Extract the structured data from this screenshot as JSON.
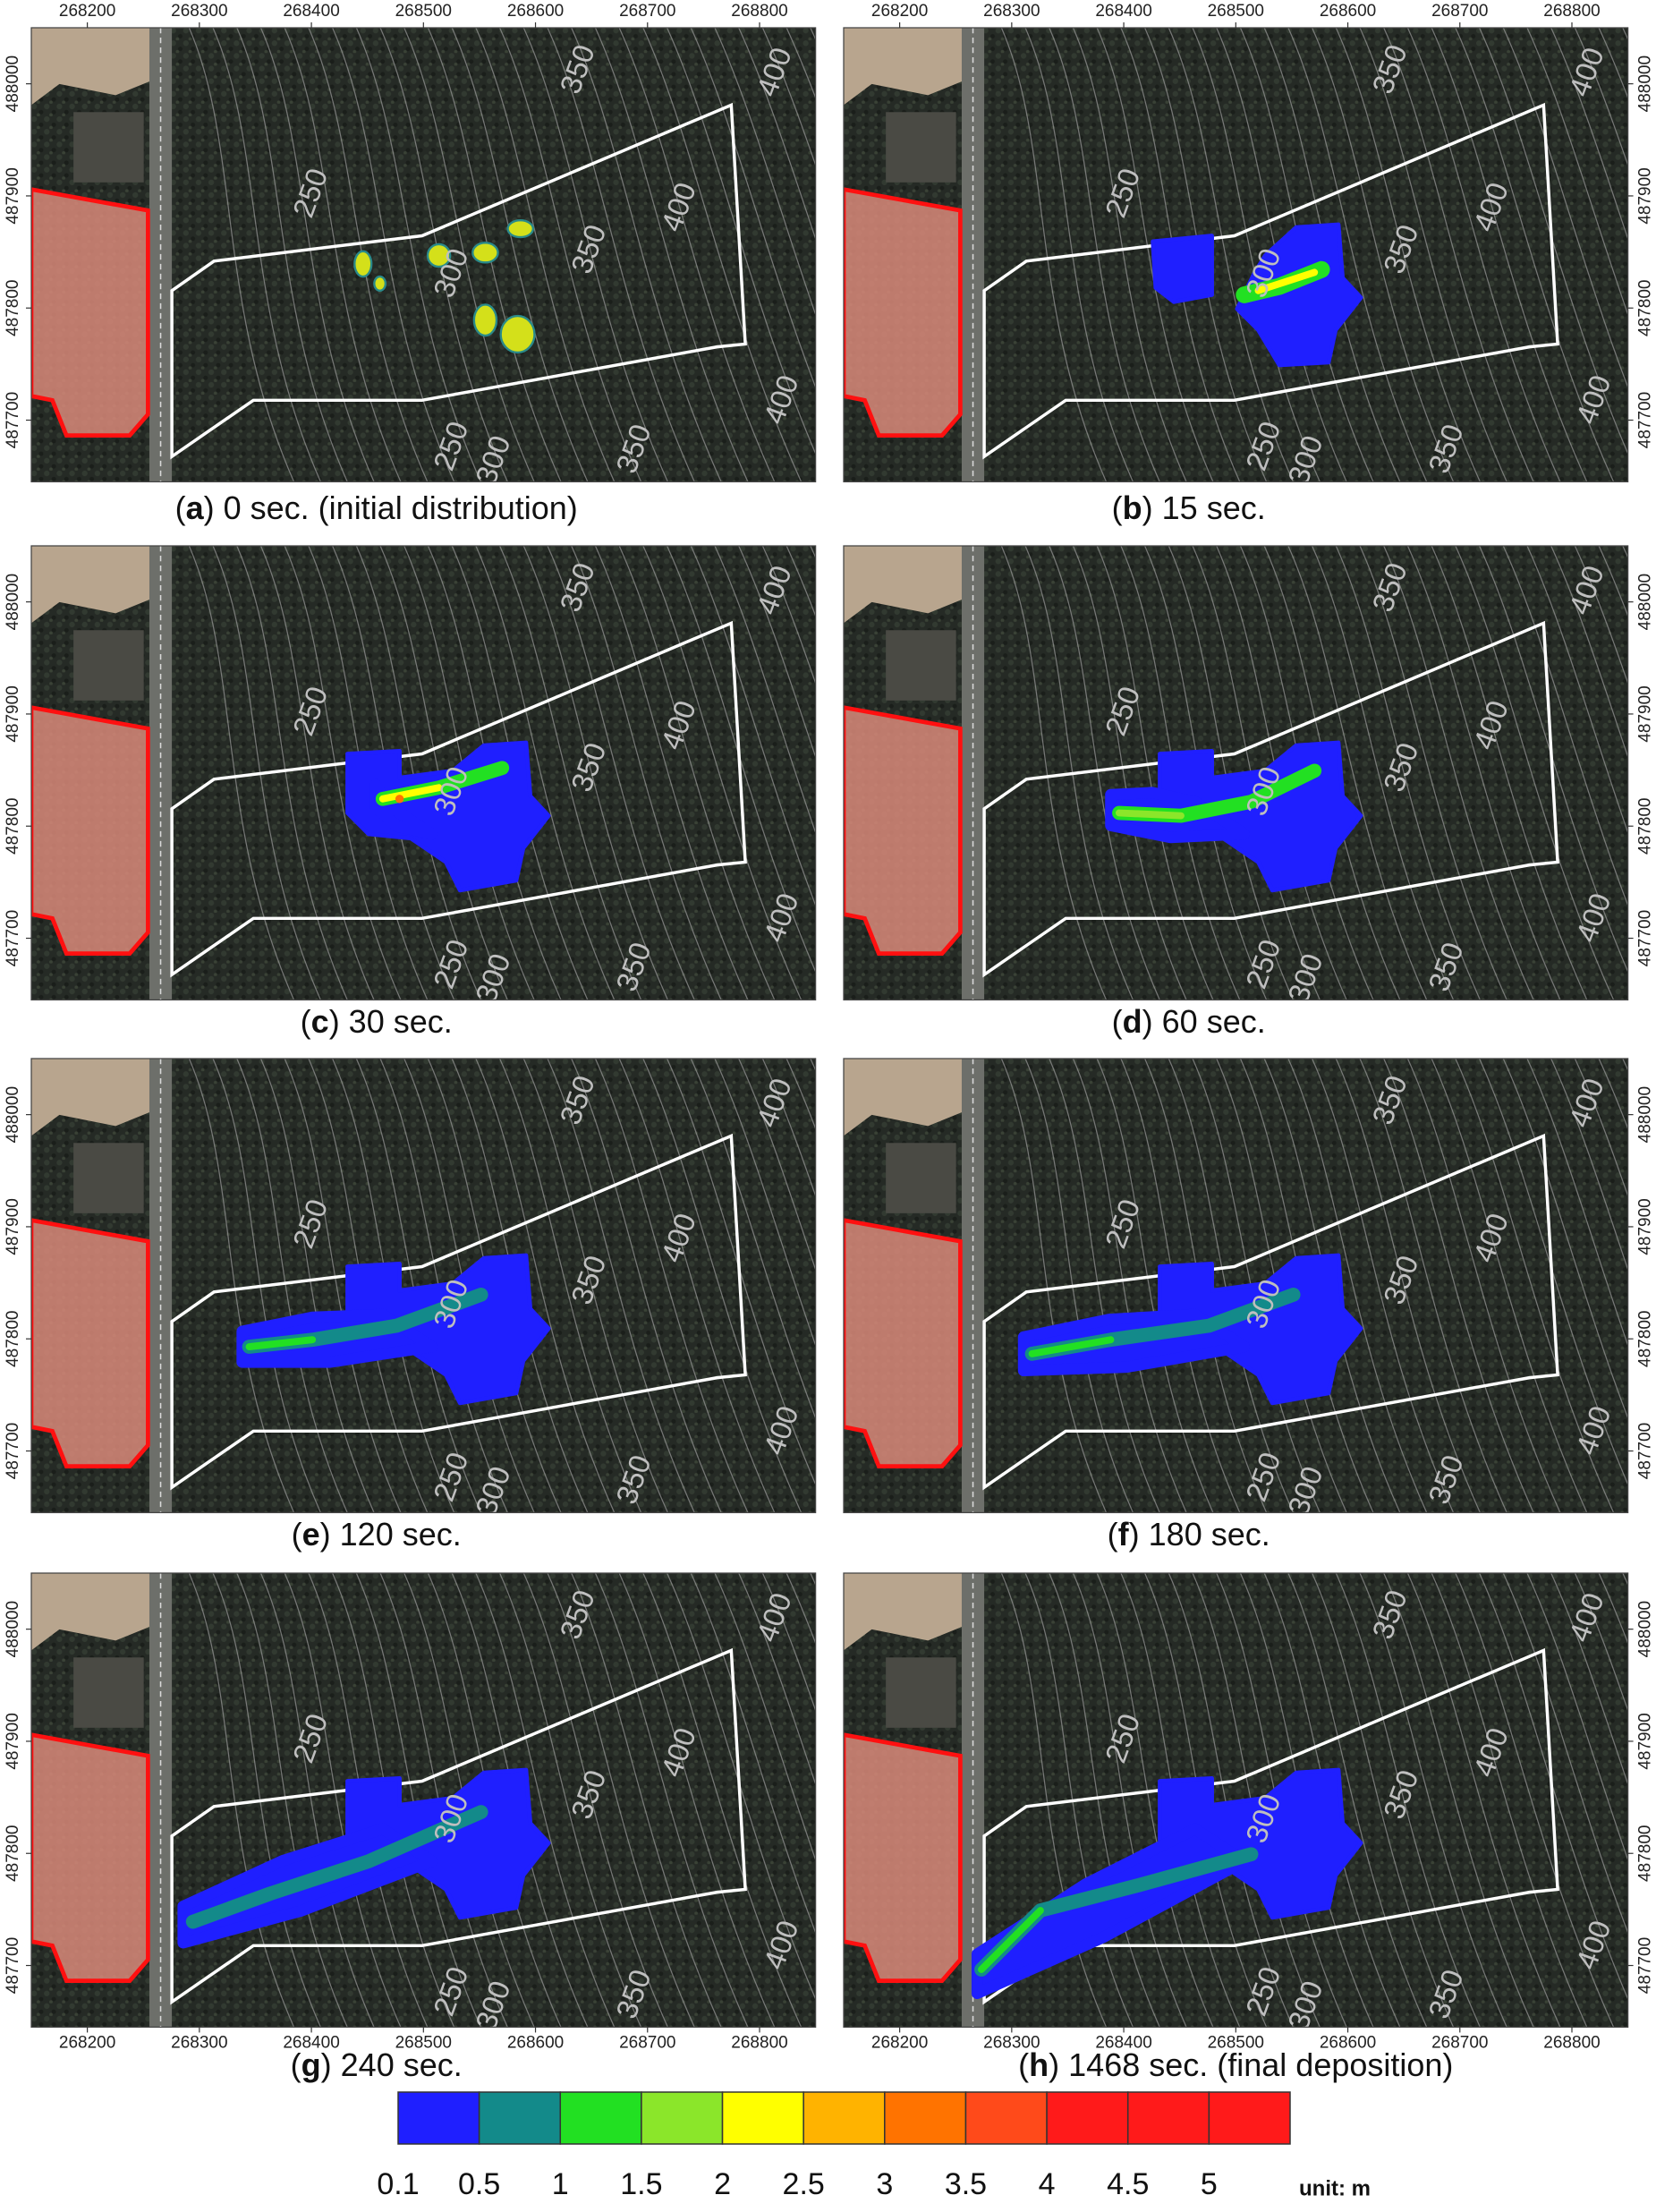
{
  "axes": {
    "xlim": [
      268150,
      268850
    ],
    "ylim": [
      487645,
      488050
    ],
    "xticks": [
      268200,
      268300,
      268400,
      268500,
      268600,
      268700,
      268800
    ],
    "yticks": [
      487700,
      487800,
      487900,
      488000
    ]
  },
  "contour_labels": [
    "250",
    "300",
    "350",
    "400"
  ],
  "panels": [
    {
      "caption": [
        "(",
        "a",
        ") 0 sec. (initial distribution)"
      ]
    },
    {
      "caption": [
        "(",
        "b",
        ") 15 sec."
      ]
    },
    {
      "caption": [
        "(",
        "c",
        ") 30 sec."
      ]
    },
    {
      "caption": [
        "(",
        "d",
        ") 60 sec."
      ]
    },
    {
      "caption": [
        "(",
        "e",
        ") 120 sec."
      ]
    },
    {
      "caption": [
        "(",
        "f",
        ") 180 sec."
      ]
    },
    {
      "caption": [
        "(",
        "g",
        ") 240 sec."
      ]
    },
    {
      "caption": [
        "(",
        "h",
        ") 1468 sec. (final deposition)"
      ]
    }
  ],
  "colorbar": {
    "levels": [
      0.1,
      0.5,
      1,
      1.5,
      2,
      2.5,
      3,
      3.5,
      4,
      4.5,
      5
    ],
    "colors": [
      "#1f1fff",
      "#138a8a",
      "#22e022",
      "#8be62a",
      "#ffff00",
      "#ffb300",
      "#ff7300",
      "#ff4a1a",
      "#ff1a1a",
      "#ff1a1a",
      "#ff1a1a"
    ],
    "unit": "unit: m"
  }
}
